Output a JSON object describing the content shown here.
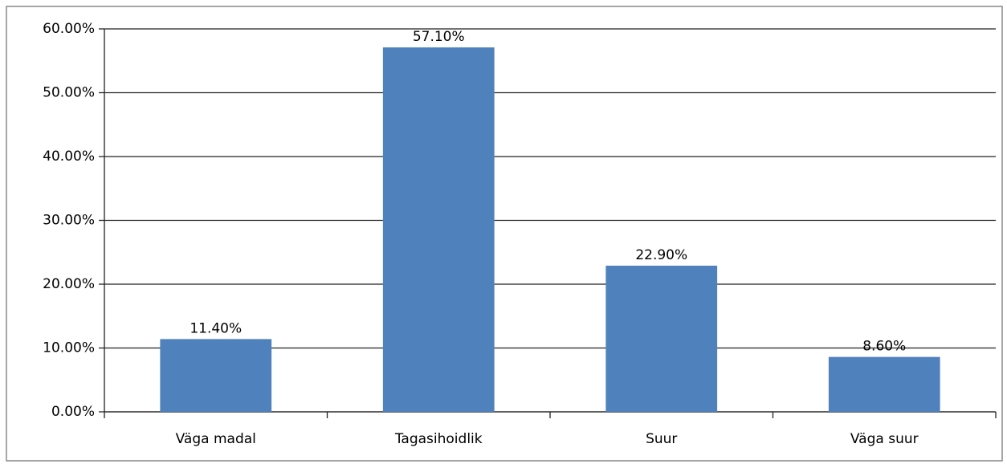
{
  "chart_data": {
    "type": "bar",
    "categories": [
      "Väga madal",
      "Tagasihoidlik",
      "Suur",
      "Väga suur"
    ],
    "values": [
      11.4,
      57.1,
      22.9,
      8.6
    ],
    "value_labels": [
      "11.40%",
      "57.10%",
      "22.90%",
      "8.60%"
    ],
    "color": "#4f81bd",
    "ylim": [
      0,
      60
    ],
    "yticks": [
      {
        "value": 0,
        "label": "0.00%"
      },
      {
        "value": 10,
        "label": "10.00%"
      },
      {
        "value": 20,
        "label": "20.00%"
      },
      {
        "value": 30,
        "label": "30.00%"
      },
      {
        "value": 40,
        "label": "40.00%"
      },
      {
        "value": 50,
        "label": "50.00%"
      },
      {
        "value": 60,
        "label": "60.00%"
      }
    ],
    "grid": true
  }
}
